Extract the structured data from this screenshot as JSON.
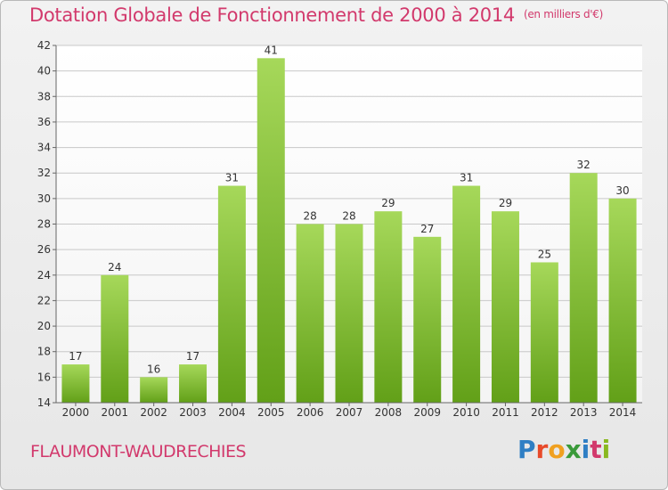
{
  "title": "Dotation Globale de Fonctionnement de 2000 à 2014",
  "unit": "(en milliers d'€)",
  "commune": "FLAUMONT-WAUDRECHIES",
  "logo": "Proxiti",
  "logo_letters": [
    "P",
    "r",
    "o",
    "x",
    "i",
    "t",
    "i"
  ],
  "colors": {
    "title": "#d2396c",
    "bar_top": "#a6d85a",
    "bar_bottom": "#62a018",
    "grid": "#c8c8c8"
  },
  "chart_data": {
    "type": "bar",
    "categories": [
      "2000",
      "2001",
      "2002",
      "2003",
      "2004",
      "2005",
      "2006",
      "2007",
      "2008",
      "2009",
      "2010",
      "2011",
      "2012",
      "2013",
      "2014"
    ],
    "values": [
      17,
      24,
      16,
      17,
      31,
      41,
      28,
      28,
      29,
      27,
      31,
      29,
      25,
      32,
      30
    ],
    "ylim": [
      14,
      42
    ],
    "yticks": [
      14,
      16,
      18,
      20,
      22,
      24,
      26,
      28,
      30,
      32,
      34,
      36,
      38,
      40,
      42
    ],
    "grid": true,
    "xlabel": "",
    "ylabel": ""
  }
}
